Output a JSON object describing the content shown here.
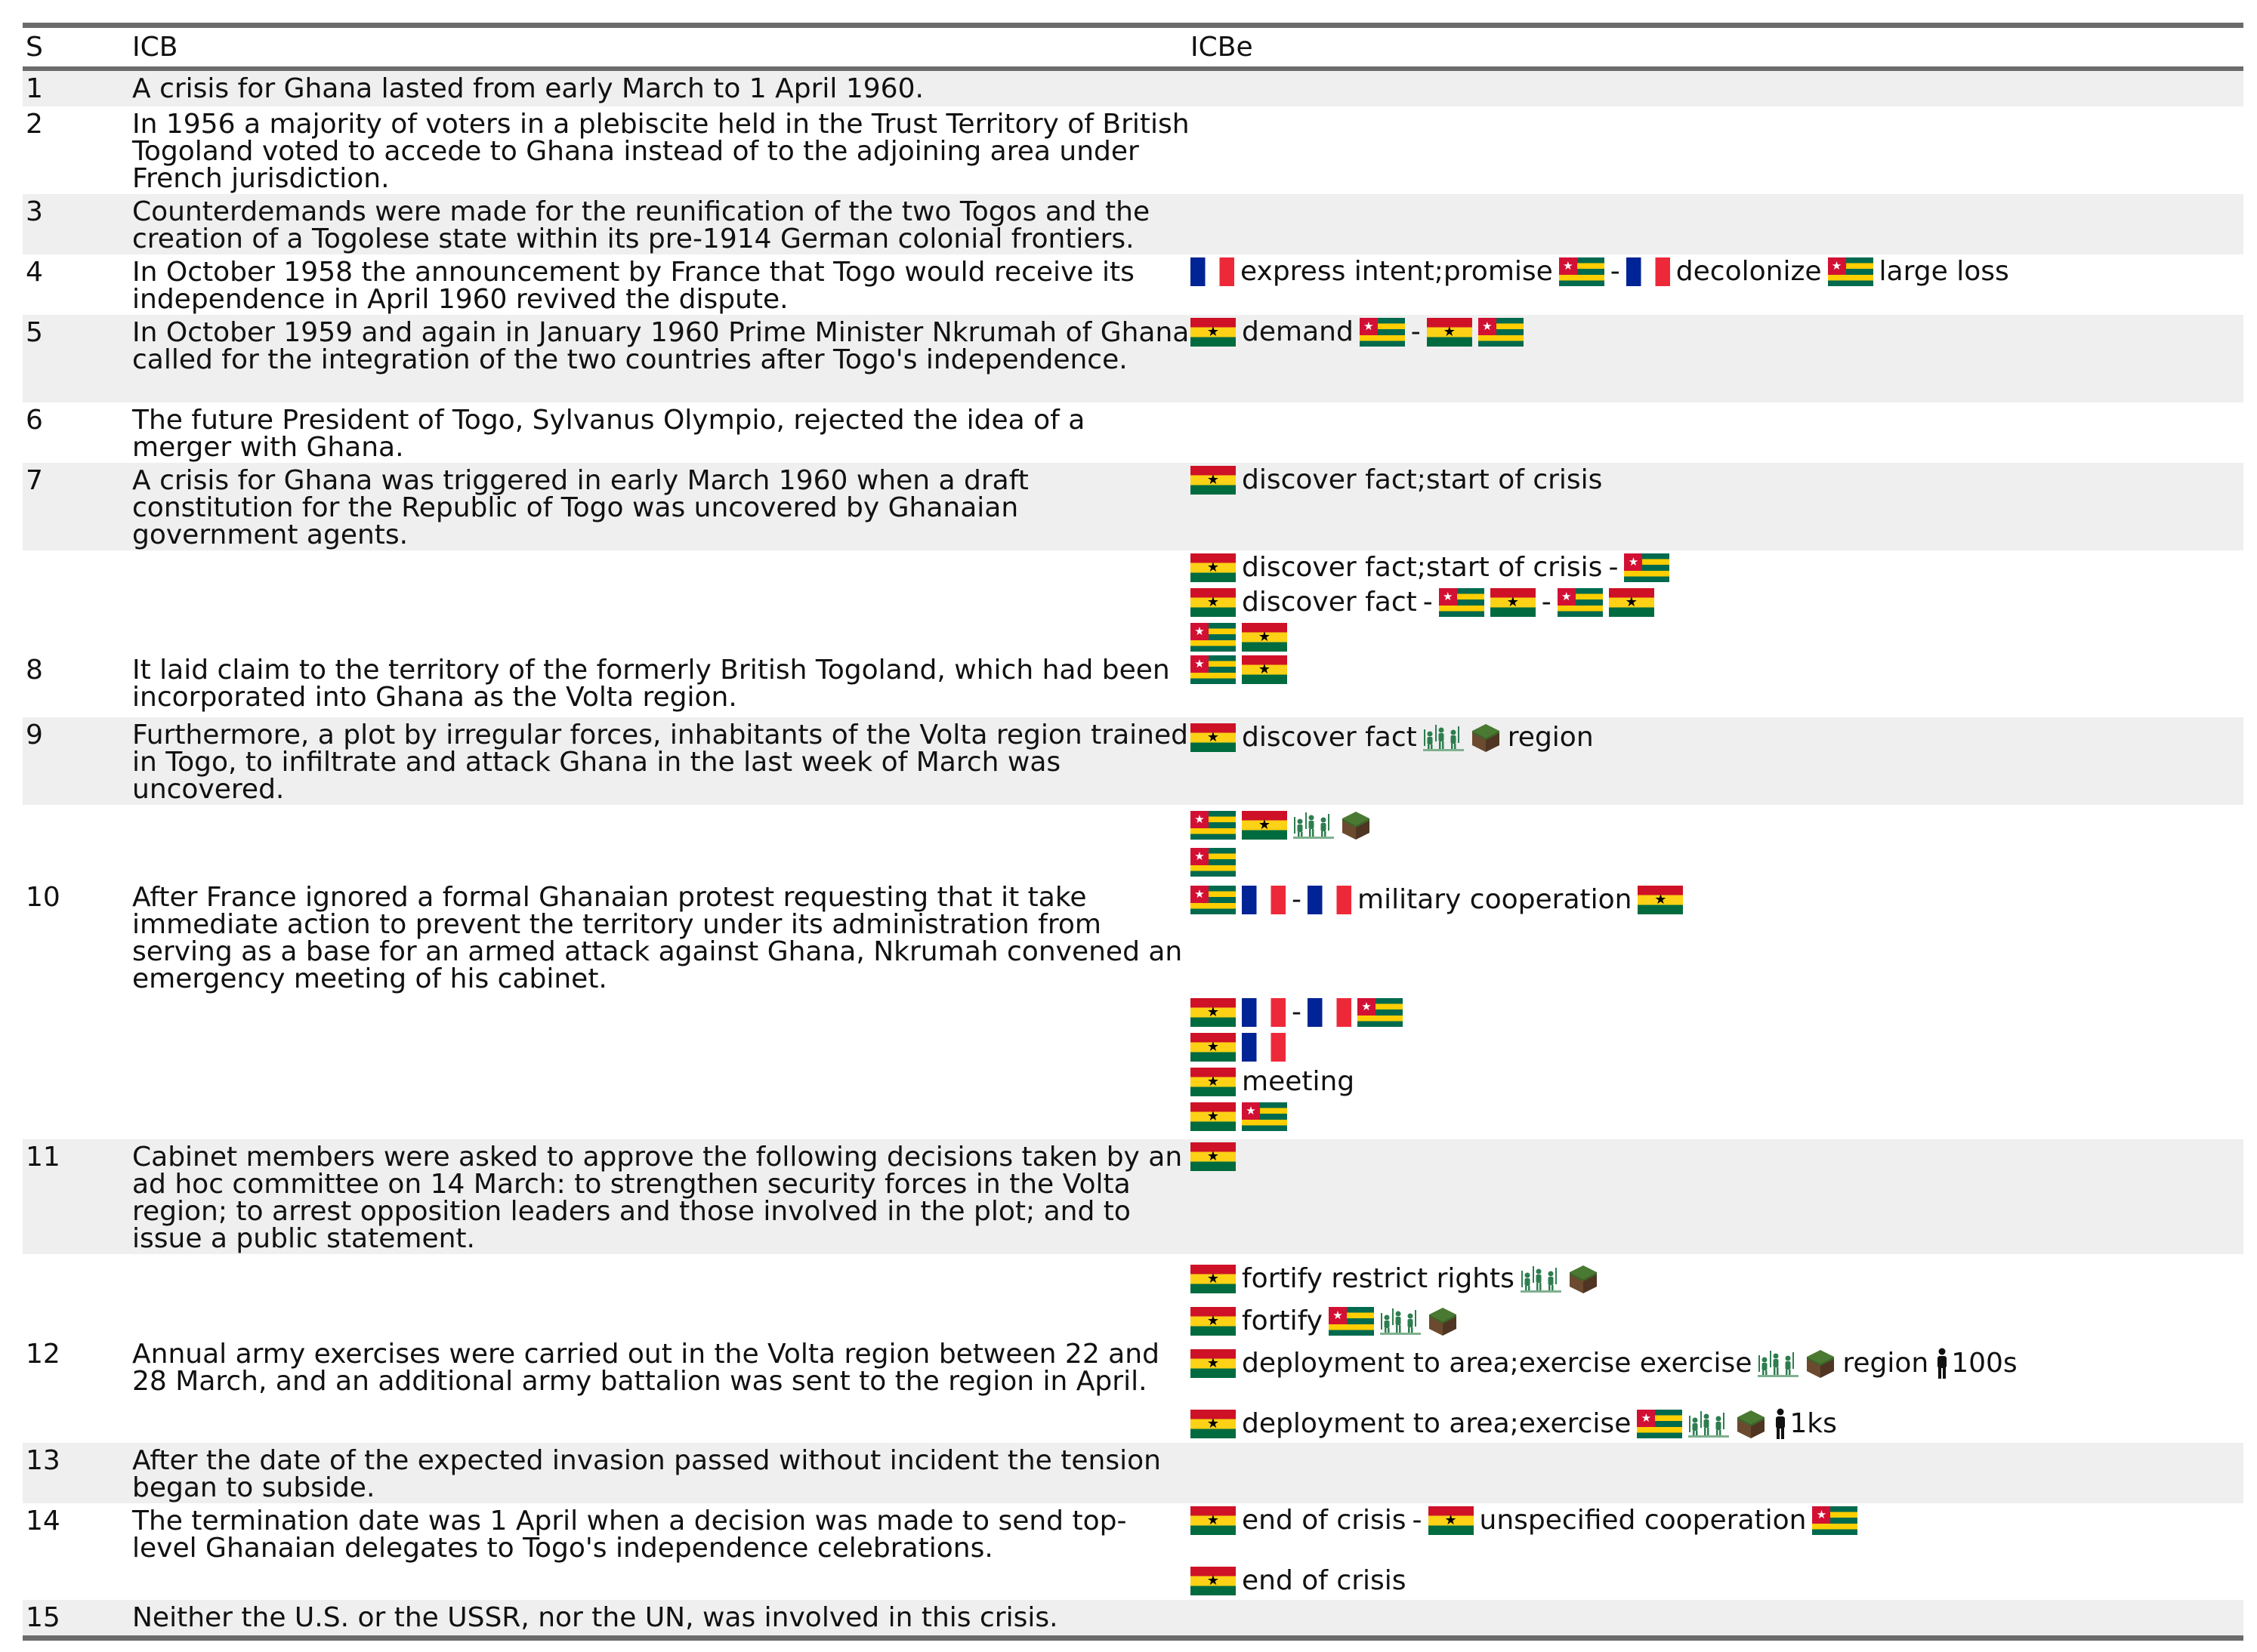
{
  "header": {
    "s": "S",
    "icb": "ICB",
    "icbe": "ICBe"
  },
  "icons": {
    "ghana": "ghana-flag",
    "togo": "togo-flag",
    "france": "france-flag",
    "irregular_forces": "soldiers-icon",
    "territory": "land-cube-icon",
    "troops": "person-icon"
  },
  "rows": [
    {
      "s": "1",
      "icb": "A crisis for Ghana lasted from early March to 1 April 1960."
    },
    {
      "s": "2",
      "icb": "In 1956 a majority of voters in a plebiscite held in the Trust Territory of British Togoland voted to accede to Ghana instead of to the adjoining area under French jurisdiction."
    },
    {
      "s": "3",
      "icb": "Counterdemands were made for the reunification of the two Togos and the creation of a Togolese state within its pre-1914 German colonial frontiers."
    },
    {
      "s": "4",
      "icb": "In October 1958 the announcement by France that Togo would receive its independence in April 1960 revived the dispute.",
      "e": {
        "t1": "express intent;promise",
        "t2": "-",
        "t3": "decolonize",
        "t4": "large loss"
      }
    },
    {
      "s": "5",
      "icb": "In October 1959 and again in January 1960 Prime Minister Nkrumah of Ghana called for the integration of the two countries after Togo's independence.",
      "e": {
        "t1": "demand",
        "t2": "-"
      }
    },
    {
      "s": "6",
      "icb": "The future President of Togo, Sylvanus Olympio, rejected the idea of a merger with Ghana."
    },
    {
      "s": "7",
      "icb": "A crisis for Ghana was triggered in early March 1960 when a draft constitution for the Republic of Togo was uncovered by Ghanaian government agents.",
      "e": {
        "t1": "discover fact;start of crisis"
      }
    },
    {
      "s": "",
      "e": {
        "t1": "discover fact;start of crisis",
        "t2": "-",
        "t3": "discover fact",
        "t4": "-",
        "t5": "-"
      }
    },
    {
      "s": "8",
      "icb": "It laid claim to the territory of the formerly British Togoland, which had been incorporated into Ghana as the Volta region."
    },
    {
      "s": "9",
      "icb": "Furthermore, a plot by irregular forces, inhabitants of the Volta region trained in Togo, to infiltrate and attack Ghana in the last week of March was uncovered.",
      "e": {
        "t1": "discover fact",
        "t2": "region"
      }
    },
    {
      "s": "10",
      "icb": "After France ignored a formal Ghanaian protest requesting that it take immediate action to prevent the territory under its administration from serving as a base for an armed attack against Ghana, Nkrumah convened an emergency meeting of his cabinet.",
      "e": {
        "t1": "-",
        "t2": "military cooperation",
        "t3": "-",
        "t4": "meeting"
      }
    },
    {
      "s": "11",
      "icb": "Cabinet members were asked to approve the following decisions taken by an ad hoc committee on 14 March: to strengthen security forces in the Volta region; to arrest opposition leaders and those involved in the plot; and to issue a public statement."
    },
    {
      "s": "12",
      "icb": "Annual army exercises were carried out in the Volta region between 22 and 28 March, and an additional army battalion was sent to the region in April.",
      "e": {
        "t1": "fortify restrict rights",
        "t2": "fortify",
        "t3": "deployment to area;exercise exercise",
        "t4": "region",
        "t5": "100s",
        "t6": "deployment to area;exercise",
        "t7": "1ks"
      }
    },
    {
      "s": "13",
      "icb": "After the date of the expected invasion passed without incident the tension began to subside."
    },
    {
      "s": "14",
      "icb": "The termination date was 1 April when a decision was made to send top-level Ghanaian delegates to Togo's independence celebrations.",
      "e": {
        "t1": "end of crisis",
        "t2": "-",
        "t3": "unspecified cooperation",
        "t4": "end of crisis"
      }
    },
    {
      "s": "15",
      "icb": "Neither the U.S. or the USSR, nor the UN, was involved in this crisis."
    }
  ]
}
